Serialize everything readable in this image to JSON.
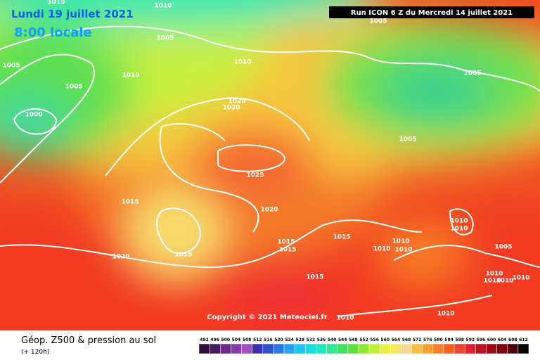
{
  "header": {
    "date": "Lundi 19 juillet 2021",
    "time": "8:00 locale",
    "run": "Run ICON 6 Z du Mercredi 14 juillet 2021"
  },
  "copyright": "Copyright © 2021 Meteociel.fr",
  "footer": {
    "title": "Géop. Z500 & pression au sol",
    "lead": "(+ 120h)"
  },
  "isobar_labels": [
    1010,
    1010,
    1005,
    1005,
    1005,
    1010,
    1010,
    1005,
    1005,
    1020,
    1020,
    1000,
    1005,
    1025,
    1015,
    1020,
    1010,
    1010,
    1015,
    1015,
    1015,
    1010,
    1010,
    1010,
    1005,
    1020,
    1015,
    1015,
    1010,
    1010,
    1010,
    1010,
    1010,
    1010
  ],
  "colorbar": {
    "ticks": [
      492,
      496,
      500,
      504,
      508,
      512,
      516,
      520,
      524,
      528,
      532,
      536,
      540,
      544,
      548,
      552,
      556,
      560,
      564,
      568,
      572,
      576,
      580,
      584,
      588,
      592,
      596,
      600,
      604,
      608,
      612
    ],
    "colors": [
      "#2b0f3a",
      "#4a1a5e",
      "#6a2a85",
      "#8a3aa8",
      "#a04fc4",
      "#3a2fb0",
      "#3050d0",
      "#2f78e8",
      "#2aa0f0",
      "#20c4f0",
      "#18dce0",
      "#20e8c0",
      "#30e890",
      "#40e060",
      "#60e040",
      "#90e830",
      "#c0f030",
      "#e8f040",
      "#f8e860",
      "#f8d890",
      "#f8c040",
      "#f8a030",
      "#f88028",
      "#f86020",
      "#f04030",
      "#e02030",
      "#c01020",
      "#a00818",
      "#800010",
      "#500008",
      "#000000"
    ]
  }
}
